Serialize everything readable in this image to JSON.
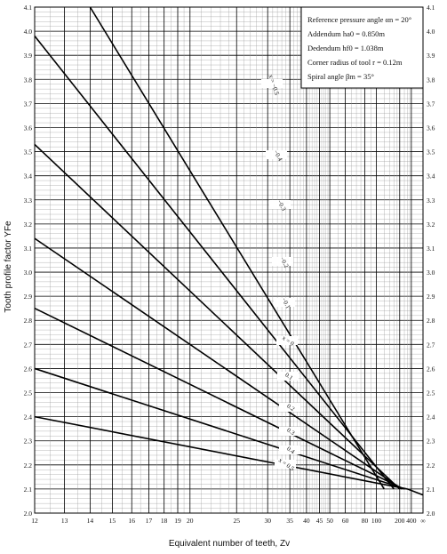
{
  "chart_data": {
    "type": "line",
    "xlabel": "Equivalent number of teeth, Zv",
    "ylabel": "Tooth profile factor  YFe",
    "x_scale": "reciprocal",
    "xlim": [
      12,
      "∞"
    ],
    "ylim": [
      2.0,
      4.1
    ],
    "grid": true,
    "x_ticks": [
      {
        "value": 12,
        "label": "12"
      },
      {
        "value": 13,
        "label": "13"
      },
      {
        "value": 14,
        "label": "14"
      },
      {
        "value": 15,
        "label": "15"
      },
      {
        "value": 16,
        "label": "16"
      },
      {
        "value": 17,
        "label": "17"
      },
      {
        "value": 18,
        "label": "18"
      },
      {
        "value": 19,
        "label": "19"
      },
      {
        "value": 20,
        "label": "20"
      },
      {
        "value": 25,
        "label": "25"
      },
      {
        "value": 30,
        "label": "30"
      },
      {
        "value": 35,
        "label": "35"
      },
      {
        "value": 40,
        "label": "40"
      },
      {
        "value": 45,
        "label": "45"
      },
      {
        "value": 50,
        "label": "50"
      },
      {
        "value": 60,
        "label": "60"
      },
      {
        "value": 80,
        "label": "80"
      },
      {
        "value": 100,
        "label": "100"
      },
      {
        "value": 200,
        "label": "200"
      },
      {
        "value": 400,
        "label": "400"
      },
      {
        "value": "inf",
        "label": "∞"
      }
    ],
    "y_ticks": [
      "2.0",
      "2.1",
      "2.2",
      "2.3",
      "2.4",
      "2.5",
      "2.6",
      "2.7",
      "2.8",
      "2.9",
      "3.0",
      "3.1",
      "3.2",
      "3.3",
      "3.4",
      "3.5",
      "3.6",
      "3.7",
      "3.8",
      "3.9",
      "4.0",
      "4.1"
    ],
    "parameters": [
      {
        "text": "Reference pressure angle αn = 20°"
      },
      {
        "text": "Addendum ha0 = 0.850m"
      },
      {
        "text": "Dedendum hf0 = 1.038m"
      },
      {
        "text": "Corner radius of tool  r = 0.12m"
      },
      {
        "text": "Spiral angle βm = 35°"
      }
    ],
    "series": [
      {
        "name": "x = −0.5",
        "label": "x = −0.5",
        "start": [
          14.0,
          4.1
        ],
        "end": [
          120,
          2.1
        ],
        "label_at": 30.5
      },
      {
        "name": "−0.4",
        "label": "−0.4",
        "start": [
          12,
          3.98
        ],
        "end": [
          160,
          2.1
        ],
        "label_at": 31.0
      },
      {
        "name": "−0.3",
        "label": "−0.3",
        "start": [
          12,
          3.53
        ],
        "end": [
          200,
          2.1
        ],
        "label_at": 31.5
      },
      {
        "name": "−0.2",
        "label": "−0.2",
        "start": [
          12,
          3.14
        ],
        "end": [
          220,
          2.1
        ],
        "label_at": 32.0
      },
      {
        "name": "−0.1",
        "label": "−0.1",
        "start": [
          12,
          2.85
        ],
        "end": [
          240,
          2.1
        ],
        "label_at": 32.5
      },
      {
        "name": "x = 0",
        "label": "x = 0",
        "start": [
          12,
          2.6
        ],
        "end": [
          260,
          2.1
        ],
        "label_at": 33.0
      },
      {
        "name": "0.1",
        "label": "0.1",
        "start": [
          12,
          2.4
        ],
        "end": [
          300,
          2.1
        ],
        "label_at": 33.5
      },
      {
        "name": "0.2",
        "label": "0.2",
        "start": [
          12,
          2.4
        ],
        "end": [
          300,
          2.1
        ],
        "label_at": 34.0,
        "hidden_duplicate": true
      },
      {
        "name": "0.3",
        "label": "0.3",
        "start": [
          12,
          2.4
        ],
        "end": [
          300,
          2.1
        ],
        "label_at": 34.5,
        "hidden_duplicate": true
      },
      {
        "name": "0.4",
        "label": "0.4",
        "start": [
          12,
          2.4
        ],
        "end": [
          300,
          2.1
        ],
        "label_at": 35.0,
        "hidden_duplicate": true
      },
      {
        "name": "x = 0.5",
        "label": "x = 0.5",
        "start": [
          12,
          2.4
        ],
        "end": [
          300,
          2.1
        ],
        "label_at": 35.5,
        "hidden_duplicate": true
      },
      {
        "name": "x = 0.5 (tail)",
        "label": "",
        "start": [
          300,
          2.1
        ],
        "end": [
          "inf",
          2.075
        ],
        "label_at": null
      }
    ]
  }
}
